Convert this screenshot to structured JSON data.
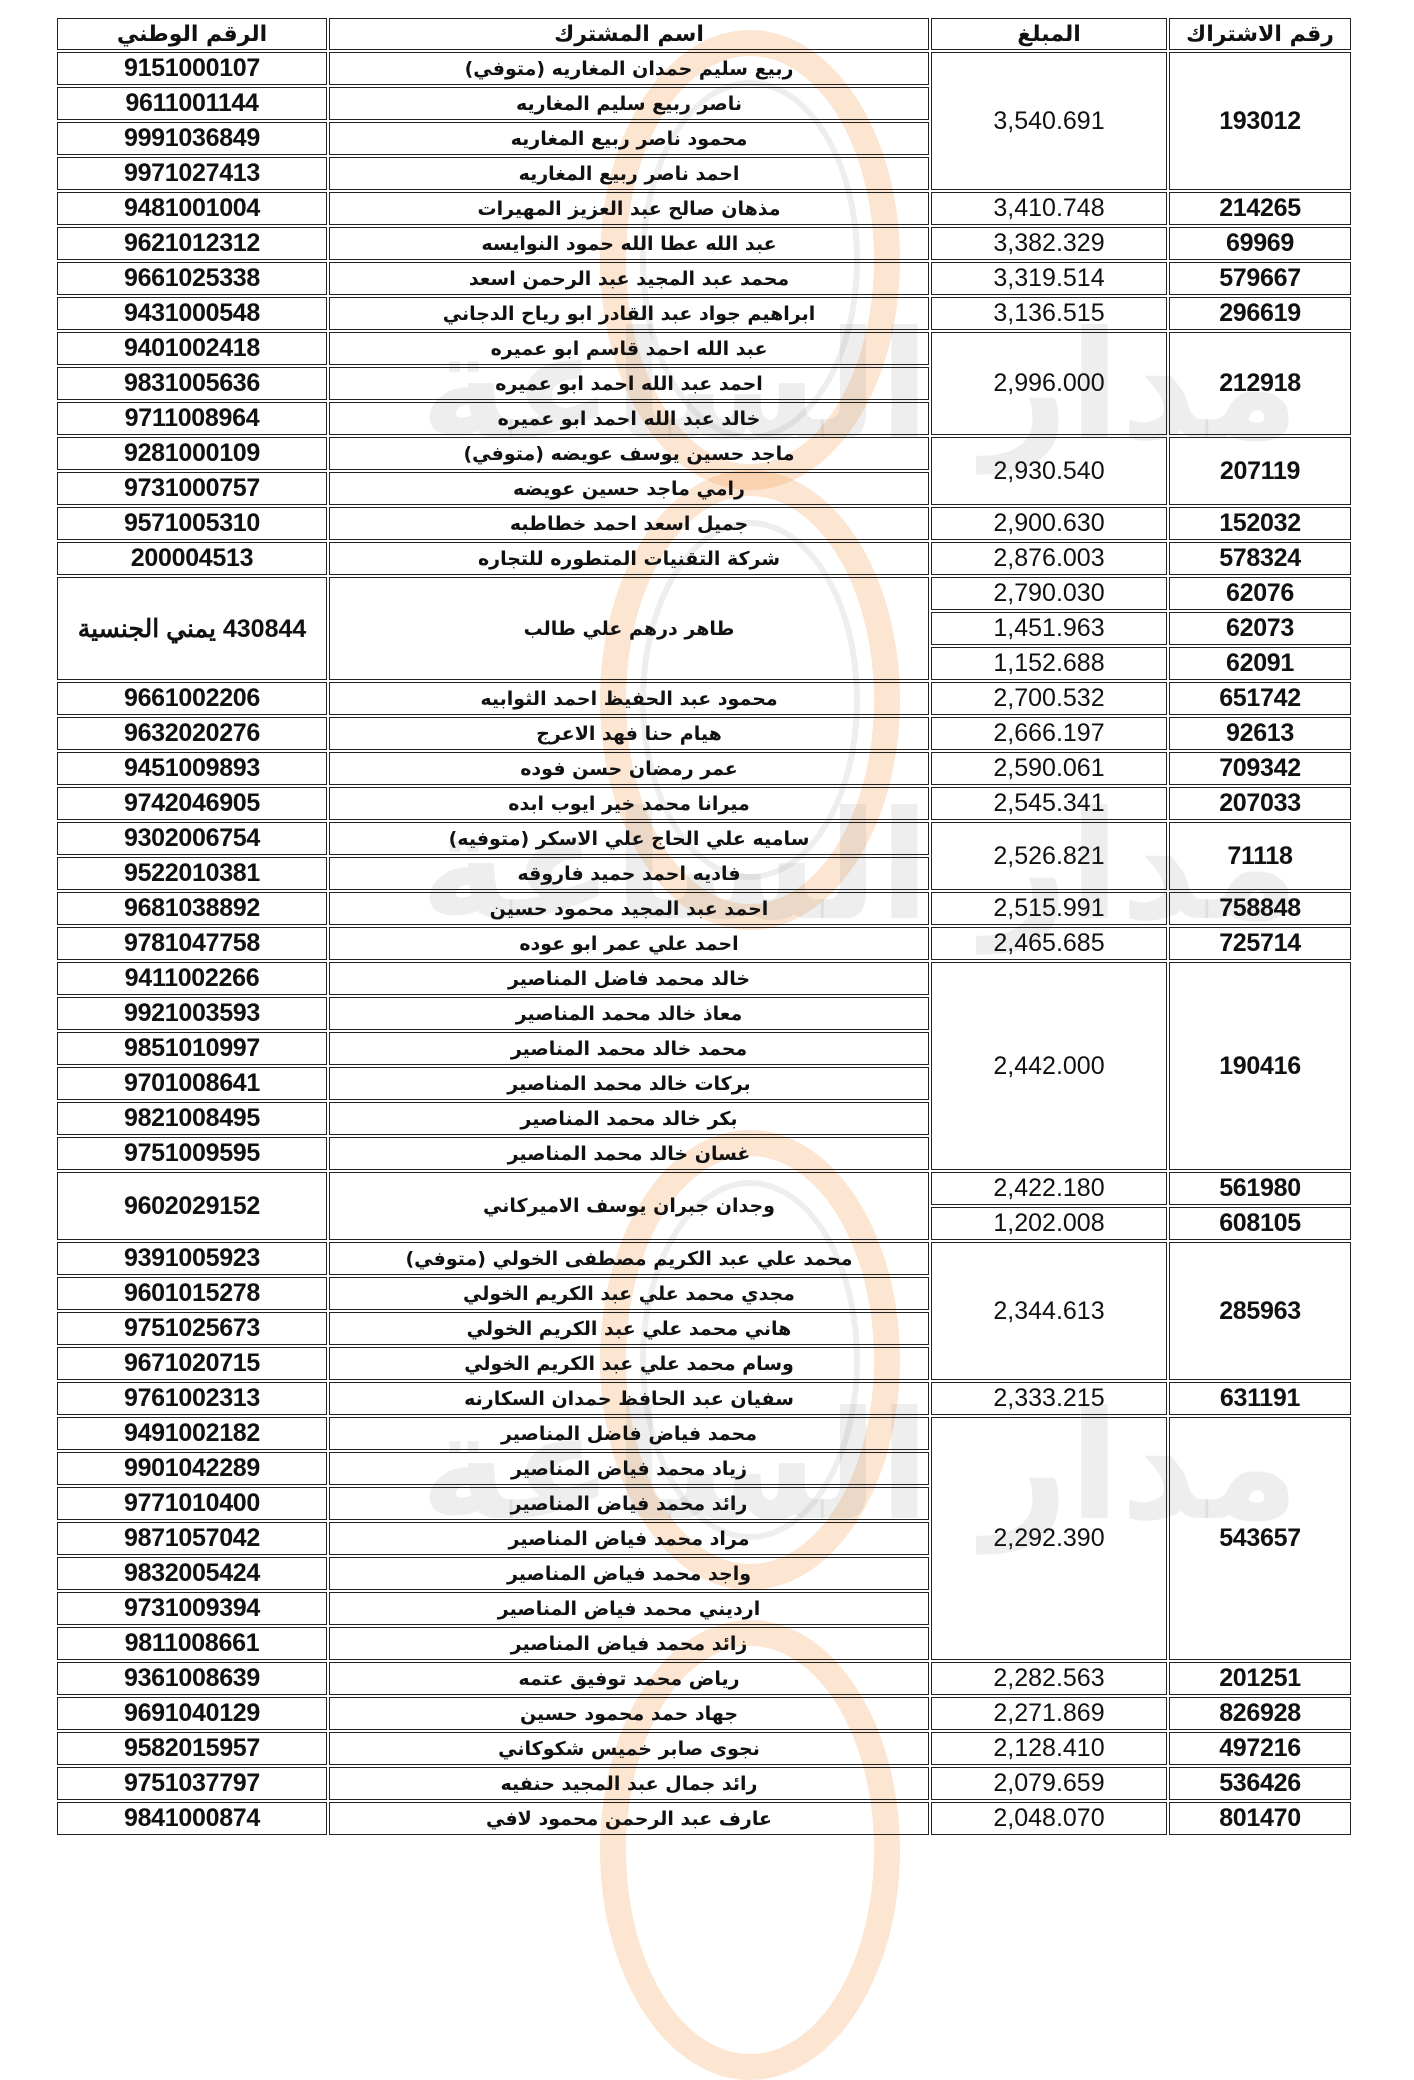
{
  "watermark": {
    "text": "مدار الساعة",
    "colors": {
      "ring": "#f5a05a",
      "text": "#969696"
    }
  },
  "table": {
    "headers": {
      "national_id": "الرقم الوطني",
      "name": "اسم المشترك",
      "amount": "المبلغ",
      "subscription": "رقم الاشتراك"
    },
    "groups": [
      {
        "subs": [
          {
            "id": "193012",
            "amount": "3,540.691"
          }
        ],
        "members": [
          {
            "name": "ربيع سليم حمدان المغاريه (متوفي)",
            "national_id": "9151000107"
          },
          {
            "name": "ناصر ربيع سليم المغاريه",
            "national_id": "9611001144"
          },
          {
            "name": "محمود ناصر ربيع المغاريه",
            "national_id": "9991036849"
          },
          {
            "name": "احمد ناصر ربيع المغاريه",
            "national_id": "9971027413"
          }
        ]
      },
      {
        "subs": [
          {
            "id": "214265",
            "amount": "3,410.748"
          }
        ],
        "members": [
          {
            "name": "مذهان صالح عبد العزيز المهيرات",
            "national_id": "9481001004"
          }
        ]
      },
      {
        "subs": [
          {
            "id": "69969",
            "amount": "3,382.329"
          }
        ],
        "members": [
          {
            "name": "عبد الله عطا الله حمود النوايسه",
            "national_id": "9621012312"
          }
        ]
      },
      {
        "subs": [
          {
            "id": "579667",
            "amount": "3,319.514"
          }
        ],
        "members": [
          {
            "name": "محمد عبد المجيد عبد الرحمن اسعد",
            "national_id": "9661025338"
          }
        ]
      },
      {
        "subs": [
          {
            "id": "296619",
            "amount": "3,136.515"
          }
        ],
        "members": [
          {
            "name": "ابراهيم جواد عبد القادر ابو رياح الدجاني",
            "national_id": "9431000548"
          }
        ]
      },
      {
        "subs": [
          {
            "id": "212918",
            "amount": "2,996.000"
          }
        ],
        "members": [
          {
            "name": "عبد الله احمد قاسم ابو عميره",
            "national_id": "9401002418"
          },
          {
            "name": "احمد عبد الله احمد ابو عميره",
            "national_id": "9831005636"
          },
          {
            "name": "خالد عبد الله احمد ابو عميره",
            "national_id": "9711008964"
          }
        ]
      },
      {
        "subs": [
          {
            "id": "207119",
            "amount": "2,930.540"
          }
        ],
        "members": [
          {
            "name": "ماجد حسين يوسف عويضه (متوفي)",
            "national_id": "9281000109"
          },
          {
            "name": "رامي ماجد حسين عويضه",
            "national_id": "9731000757"
          }
        ]
      },
      {
        "subs": [
          {
            "id": "152032",
            "amount": "2,900.630"
          }
        ],
        "members": [
          {
            "name": "جميل اسعد احمد خطاطبه",
            "national_id": "9571005310"
          }
        ]
      },
      {
        "subs": [
          {
            "id": "578324",
            "amount": "2,876.003"
          }
        ],
        "members": [
          {
            "name": "شركة التقنيات المتطوره للتجاره",
            "national_id": "200004513"
          }
        ]
      },
      {
        "subs": [
          {
            "id": "62076",
            "amount": "2,790.030"
          },
          {
            "id": "62073",
            "amount": "1,451.963"
          },
          {
            "id": "62091",
            "amount": "1,152.688"
          }
        ],
        "members": [
          {
            "name": "طاهر درهم علي طالب",
            "national_id": "430844 يمني الجنسية"
          }
        ]
      },
      {
        "subs": [
          {
            "id": "651742",
            "amount": "2,700.532"
          }
        ],
        "members": [
          {
            "name": "محمود عبد الحفيظ احمد الثوابيه",
            "national_id": "9661002206"
          }
        ]
      },
      {
        "subs": [
          {
            "id": "92613",
            "amount": "2,666.197"
          }
        ],
        "members": [
          {
            "name": "هيام حنا فهد الاعرج",
            "national_id": "9632020276"
          }
        ]
      },
      {
        "subs": [
          {
            "id": "709342",
            "amount": "2,590.061"
          }
        ],
        "members": [
          {
            "name": "عمر رمضان حسن فوده",
            "national_id": "9451009893"
          }
        ]
      },
      {
        "subs": [
          {
            "id": "207033",
            "amount": "2,545.341"
          }
        ],
        "members": [
          {
            "name": "ميرانا محمد خير ايوب ابده",
            "national_id": "9742046905"
          }
        ]
      },
      {
        "subs": [
          {
            "id": "71118",
            "amount": "2,526.821"
          }
        ],
        "members": [
          {
            "name": "ساميه علي الحاج علي الاسكر (متوفيه)",
            "national_id": "9302006754"
          },
          {
            "name": "فاديه احمد حميد فاروقه",
            "national_id": "9522010381"
          }
        ]
      },
      {
        "subs": [
          {
            "id": "758848",
            "amount": "2,515.991"
          }
        ],
        "members": [
          {
            "name": "احمد عبد المجيد محمود حسين",
            "national_id": "9681038892"
          }
        ]
      },
      {
        "subs": [
          {
            "id": "725714",
            "amount": "2,465.685"
          }
        ],
        "members": [
          {
            "name": "احمد علي عمر ابو عوده",
            "national_id": "9781047758"
          }
        ]
      },
      {
        "subs": [
          {
            "id": "190416",
            "amount": "2,442.000"
          }
        ],
        "members": [
          {
            "name": "خالد محمد فاضل المناصير",
            "national_id": "9411002266"
          },
          {
            "name": "معاذ خالد محمد المناصير",
            "national_id": "9921003593"
          },
          {
            "name": "محمد خالد محمد المناصير",
            "national_id": "9851010997"
          },
          {
            "name": "بركات خالد محمد المناصير",
            "national_id": "9701008641"
          },
          {
            "name": "بكر خالد محمد المناصير",
            "national_id": "9821008495"
          },
          {
            "name": "غسان خالد محمد المناصير",
            "national_id": "9751009595"
          }
        ]
      },
      {
        "subs": [
          {
            "id": "561980",
            "amount": "2,422.180"
          },
          {
            "id": "608105",
            "amount": "1,202.008"
          }
        ],
        "members": [
          {
            "name": "وجدان جبران يوسف الاميركاني",
            "national_id": "9602029152"
          }
        ]
      },
      {
        "subs": [
          {
            "id": "285963",
            "amount": "2,344.613"
          }
        ],
        "members": [
          {
            "name": "محمد علي عبد الكريم مصطفى الخولي (متوفي)",
            "national_id": "9391005923"
          },
          {
            "name": "مجدي محمد علي عبد الكريم الخولي",
            "national_id": "9601015278"
          },
          {
            "name": "هاني محمد علي عبد الكريم الخولي",
            "national_id": "9751025673"
          },
          {
            "name": "وسام محمد علي عبد الكريم الخولي",
            "national_id": "9671020715"
          }
        ]
      },
      {
        "subs": [
          {
            "id": "631191",
            "amount": "2,333.215"
          }
        ],
        "members": [
          {
            "name": "سفيان عبد الحافظ حمدان السكارنه",
            "national_id": "9761002313"
          }
        ]
      },
      {
        "subs": [
          {
            "id": "543657",
            "amount": "2,292.390"
          }
        ],
        "members": [
          {
            "name": "محمد فياض فاضل المناصير",
            "national_id": "9491002182"
          },
          {
            "name": "زياد محمد فياض المناصير",
            "national_id": "9901042289"
          },
          {
            "name": "رائد محمد فياض المناصير",
            "national_id": "9771010400"
          },
          {
            "name": "مراد محمد فياض المناصير",
            "national_id": "9871057042"
          },
          {
            "name": "واجد محمد فياض المناصير",
            "national_id": "9832005424"
          },
          {
            "name": "ارديني محمد فياض المناصير",
            "national_id": "9731009394"
          },
          {
            "name": "زائد محمد فياض المناصير",
            "national_id": "9811008661"
          }
        ]
      },
      {
        "subs": [
          {
            "id": "201251",
            "amount": "2,282.563"
          }
        ],
        "members": [
          {
            "name": "رياض محمد توفيق عتمه",
            "national_id": "9361008639"
          }
        ]
      },
      {
        "subs": [
          {
            "id": "826928",
            "amount": "2,271.869"
          }
        ],
        "members": [
          {
            "name": "جهاد حمد محمود حسين",
            "national_id": "9691040129"
          }
        ]
      },
      {
        "subs": [
          {
            "id": "497216",
            "amount": "2,128.410"
          }
        ],
        "members": [
          {
            "name": "نجوى صابر خميس شكوكاني",
            "national_id": "9582015957"
          }
        ]
      },
      {
        "subs": [
          {
            "id": "536426",
            "amount": "2,079.659"
          }
        ],
        "members": [
          {
            "name": "رائد جمال عبد المجيد حنفيه",
            "national_id": "9751037797"
          }
        ]
      },
      {
        "subs": [
          {
            "id": "801470",
            "amount": "2,048.070"
          }
        ],
        "members": [
          {
            "name": "عارف عبد الرحمن محمود لافي",
            "national_id": "9841000874"
          }
        ]
      }
    ]
  }
}
